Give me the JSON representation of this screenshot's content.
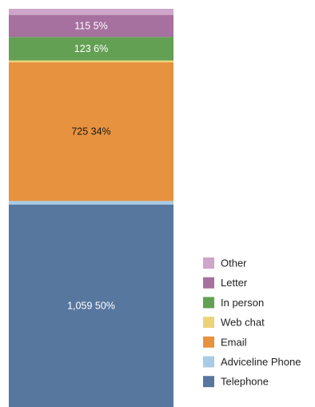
{
  "chart_data": {
    "type": "bar",
    "stacked": true,
    "categories": [
      ""
    ],
    "series": [
      {
        "name": "Telephone",
        "values": [
          1059
        ],
        "label": "1,059 50%",
        "color": "#58779f",
        "label_color": "#ffffff"
      },
      {
        "name": "Adviceline Phone",
        "values": [
          18
        ],
        "label": "",
        "color": "#a9cbe6",
        "label_color": "#ffffff"
      },
      {
        "name": "Email",
        "values": [
          725
        ],
        "label": "725 34%",
        "color": "#e7923f",
        "label_color": "#1a1a1a"
      },
      {
        "name": "Web chat",
        "values": [
          10
        ],
        "label": "",
        "color": "#ecd37a",
        "label_color": "#1a1a1a"
      },
      {
        "name": "In person",
        "values": [
          123
        ],
        "label": "123 6%",
        "color": "#63a053",
        "label_color": "#ffffff"
      },
      {
        "name": "Letter",
        "values": [
          115
        ],
        "label": "115 5%",
        "color": "#a6709f",
        "label_color": "#ffffff"
      },
      {
        "name": "Other",
        "values": [
          32
        ],
        "label": "",
        "color": "#cfa5c9",
        "label_color": "#ffffff"
      }
    ],
    "legend_order": [
      "Other",
      "Letter",
      "In person",
      "Web chat",
      "Email",
      "Adviceline Phone",
      "Telephone"
    ],
    "legend_position": "right",
    "grid": false
  }
}
